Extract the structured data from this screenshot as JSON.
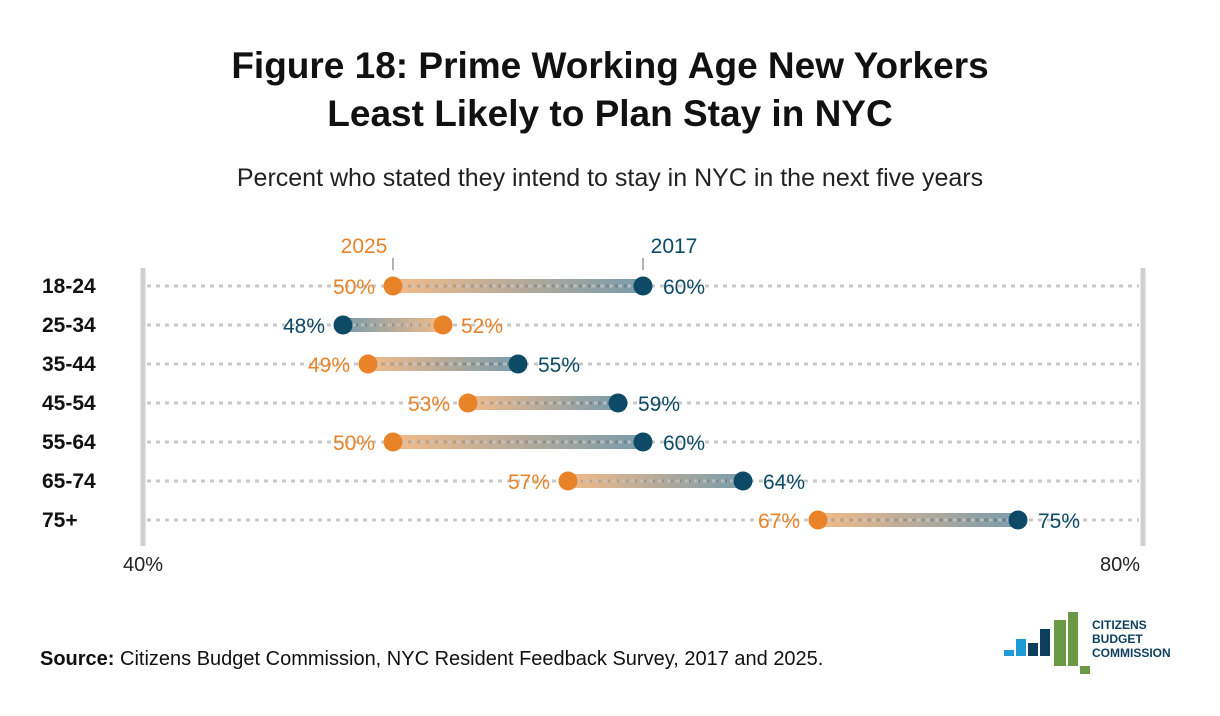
{
  "title_line1": "Figure 18: Prime Working Age New Yorkers",
  "title_line2": "Least Likely to Plan Stay in NYC",
  "source": {
    "label": "Source:",
    "text": "Citizens Budget Commission, NYC Resident Feedback Survey, 2017 and 2025."
  },
  "logo": {
    "line1": "CITIZENS",
    "line2": "BUDGET",
    "line3": "COMMISSION"
  },
  "colors": {
    "y2025": "#e8832a",
    "y2017": "#0c4a66",
    "axis": "#d0d0d0",
    "grid": "#c8c8c8"
  },
  "chart_data": {
    "type": "dumbbell",
    "title": "Figure 18: Prime Working Age New Yorkers Least Likely to Plan Stay in NYC",
    "subtitle": "Percent who stated they intend to stay in NYC in the next five years",
    "xlim": [
      40,
      80
    ],
    "xticks": [
      "40%",
      "80%"
    ],
    "legend_labels": [
      "2025",
      "2017"
    ],
    "categories": [
      "18-24",
      "25-34",
      "35-44",
      "45-54",
      "55-64",
      "65-74",
      "75+"
    ],
    "series": [
      {
        "name": "2025",
        "values": [
          50,
          52,
          49,
          53,
          50,
          57,
          67
        ]
      },
      {
        "name": "2017",
        "values": [
          60,
          48,
          55,
          59,
          60,
          64,
          75
        ]
      }
    ]
  }
}
